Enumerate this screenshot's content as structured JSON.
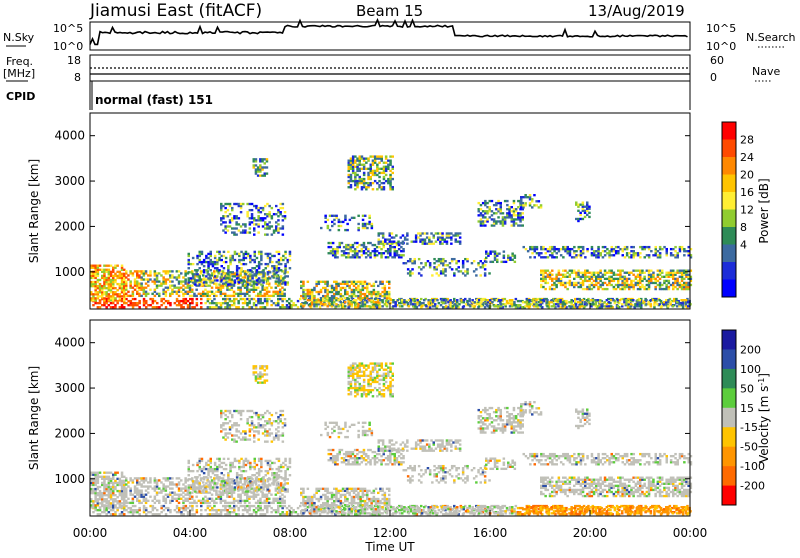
{
  "header": {
    "station": "Jiamusi East (fitACF)",
    "beam": "Beam 15",
    "date": "13/Aug/2019"
  },
  "noise_panel": {
    "left_label": "N.Sky",
    "right_label": "N.Search",
    "top_tick": "10^5",
    "bottom_tick": "10^0"
  },
  "freq_panel": {
    "left_label_1": "Freq.",
    "left_label_2": "[MHz]",
    "right_label": "Nave",
    "left_ticks": [
      "18",
      "8"
    ],
    "right_ticks": [
      "60",
      "0"
    ]
  },
  "cpid_panel": {
    "label": "CPID",
    "value": "normal (fast) 151"
  },
  "chart_data": [
    {
      "type": "heatmap",
      "name": "power",
      "ylabel": "Slant Range [km]",
      "y_ticks": [
        "4000",
        "3000",
        "2000",
        "1000"
      ],
      "y_tick_values": [
        4000,
        3000,
        2000,
        1000
      ],
      "ylim": [
        180,
        4500
      ],
      "xlim": [
        0,
        24
      ],
      "colorbar": {
        "label": "Power [dB]",
        "levels": [
          "28",
          "24",
          "20",
          "16",
          "12",
          "8",
          "4"
        ],
        "colors": [
          "#ff0000",
          "#ff4a00",
          "#ff8800",
          "#ffc400",
          "#ffee33",
          "#90cc30",
          "#2e8b57",
          "#3c6aa0",
          "#1c2cd8",
          "#0000ff"
        ]
      }
    },
    {
      "type": "heatmap",
      "name": "velocity",
      "ylabel": "Slant Range [km]",
      "xlabel": "Time UT",
      "x_ticks": [
        "00:00",
        "04:00",
        "08:00",
        "12:00",
        "16:00",
        "20:00",
        "00:00"
      ],
      "y_ticks": [
        "4000",
        "3000",
        "2000",
        "1000"
      ],
      "y_tick_values": [
        4000,
        3000,
        2000,
        1000
      ],
      "ylim": [
        180,
        4500
      ],
      "xlim": [
        0,
        24
      ],
      "colorbar": {
        "label": "Velocity [m s",
        "superscript": "-1",
        "label_end": "]",
        "levels": [
          "200",
          "100",
          "50",
          "15",
          "-15",
          "-50",
          "-100",
          "-200"
        ],
        "colors": [
          "#1a1aa0",
          "#2c4ea8",
          "#2e8b57",
          "#5ccd3c",
          "#c0c0b8",
          "#ffc400",
          "#ff9500",
          "#ff6a00",
          "#ff0000"
        ]
      }
    }
  ]
}
